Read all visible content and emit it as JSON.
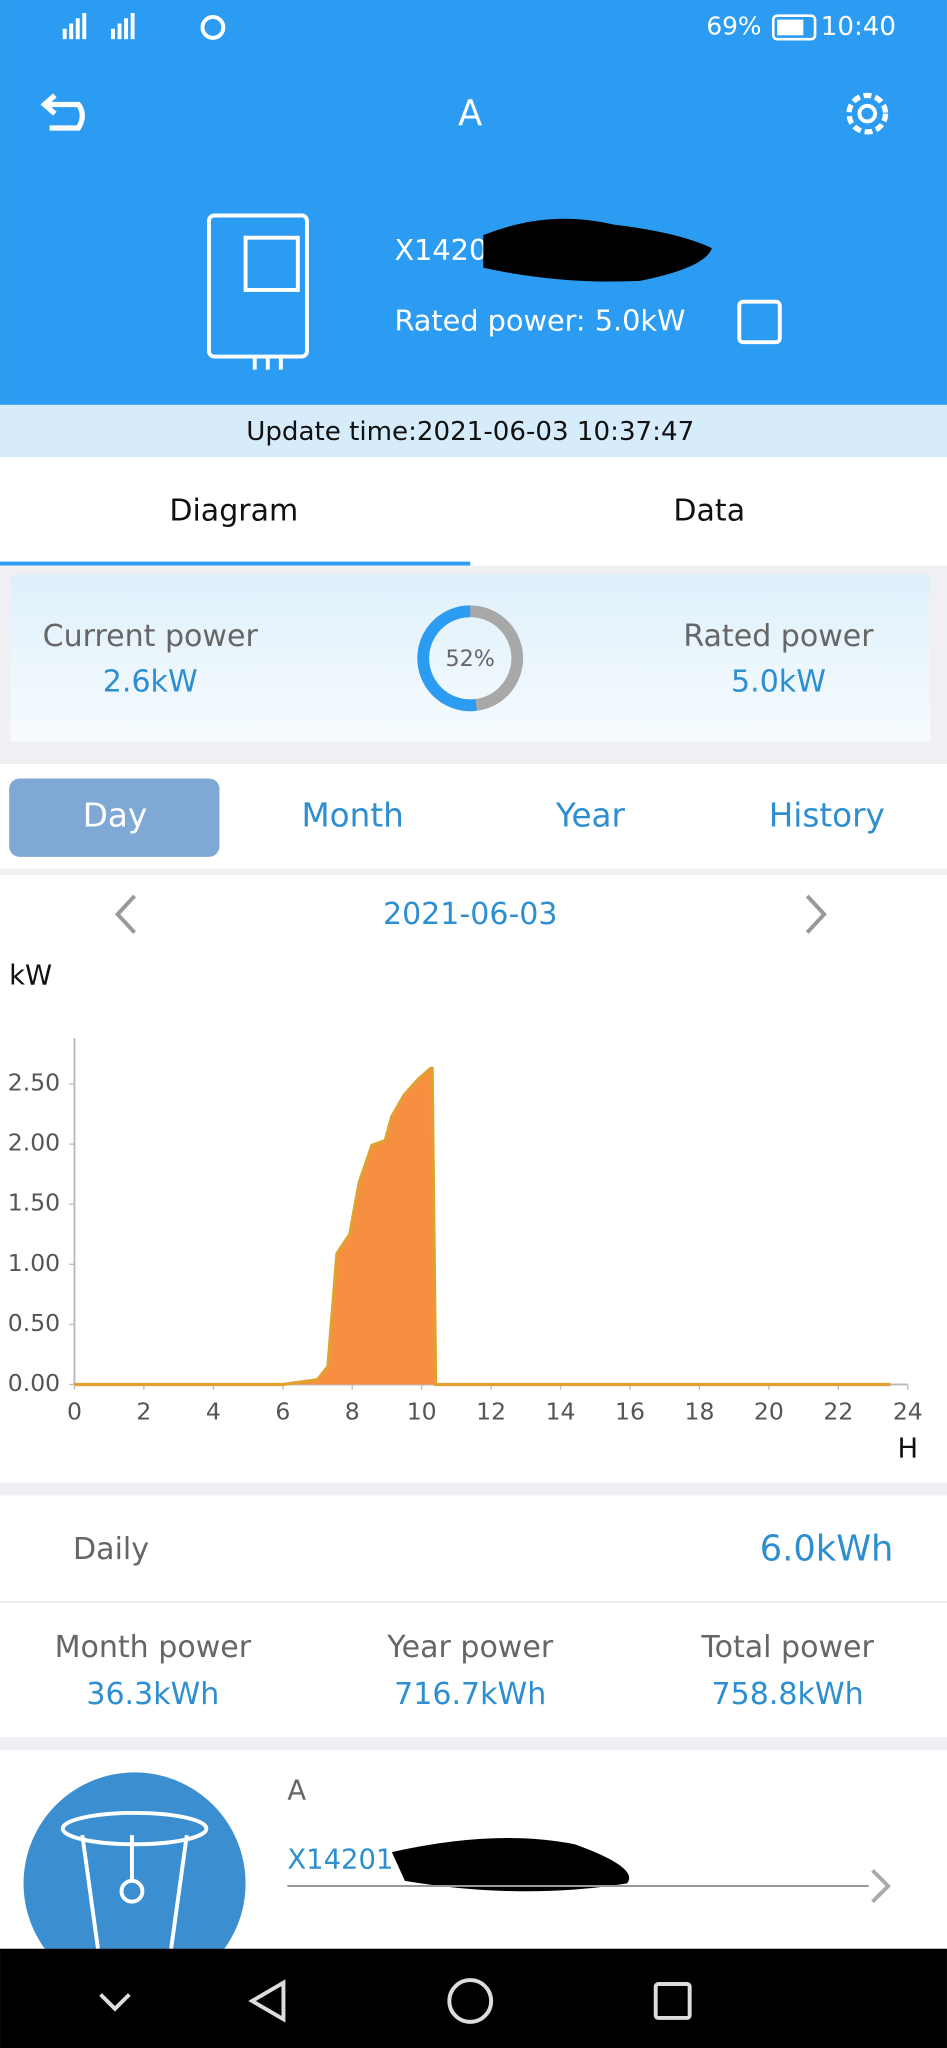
{
  "status_bar": {
    "battery": "69%",
    "time": "10:40"
  },
  "header": {
    "title": "A",
    "device_name": "X1420",
    "rated_power": "Rated power:  5.0kW"
  },
  "update_time": "Update time:2021-06-03 10:37:47",
  "tabs": [
    "Diagram",
    "Data"
  ],
  "power_card": {
    "current_label": "Current power",
    "current_value": "2.6kW",
    "rated_label": "Rated power",
    "rated_value": "5.0kW",
    "gauge": {
      "value": 52,
      "value_label": "52%"
    }
  },
  "periods": [
    "Day",
    "Month",
    "Year",
    "History"
  ],
  "date": "2021-06-03",
  "chart_data": {
    "type": "area",
    "y_label": "kW",
    "x_label": "H",
    "x": [
      0,
      6,
      6.5,
      7,
      7.3,
      7.56,
      7.93,
      8.2,
      8.57,
      8.95,
      9.14,
      9.5,
      9.9,
      10.26,
      10.3,
      10.4,
      23.5
    ],
    "series": [
      {
        "color": "#f78f40",
        "values": [
          0,
          0,
          0.02,
          0.04,
          0.15,
          1.09,
          1.25,
          1.68,
          1.99,
          2.03,
          2.23,
          2.41,
          2.54,
          2.63,
          2.63,
          0,
          0
        ]
      }
    ],
    "xlim": [
      0,
      24
    ],
    "xticks": [
      0,
      2,
      4,
      6,
      8,
      10,
      12,
      14,
      16,
      18,
      20,
      22,
      24
    ],
    "ylim": [
      0,
      2.88
    ],
    "yticks": [
      {
        "value": 0,
        "label": "0.00"
      },
      {
        "value": 0.5,
        "label": "0.50"
      },
      {
        "value": 1,
        "label": "1.00"
      },
      {
        "value": 1.5,
        "label": "1.50"
      },
      {
        "value": 2,
        "label": "2.00"
      },
      {
        "value": 2.5,
        "label": "2.50"
      }
    ]
  },
  "daily": {
    "label": "Daily",
    "value": "6.0kWh"
  },
  "totals": [
    {
      "label": "Month power",
      "value": "36.3kWh"
    },
    {
      "label": "Year power",
      "value": "716.7kWh"
    },
    {
      "label": "Total power",
      "value": "758.8kWh"
    }
  ],
  "plant": {
    "name": "A",
    "device": "X14201"
  }
}
